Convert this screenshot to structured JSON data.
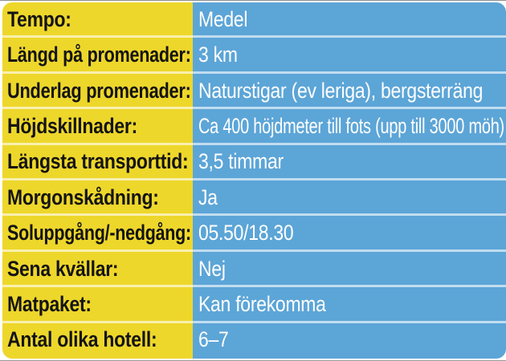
{
  "table": {
    "rows": [
      {
        "label": "Tempo:",
        "value": "Medel"
      },
      {
        "label": "Längd på promenader:",
        "value": "3 km"
      },
      {
        "label": "Underlag promenader:",
        "value": "Naturstigar (ev leriga), bergsterräng"
      },
      {
        "label": "Höjdskillnader:",
        "value": "Ca 400 höjdmeter till fots (upp till 3000 möh)"
      },
      {
        "label": "Längsta transporttid:",
        "value": "3,5 timmar"
      },
      {
        "label": "Morgonskådning:",
        "value": "Ja"
      },
      {
        "label": "Soluppgång/-nedgång:",
        "value": "05.50/18.30"
      },
      {
        "label": "Sena kvällar:",
        "value": "Nej"
      },
      {
        "label": "Matpaket:",
        "value": "Kan förekomma"
      },
      {
        "label": "Antal olika hotell:",
        "value": "6–7"
      }
    ]
  },
  "colors": {
    "label_bg": "#eed72b",
    "value_bg": "#5ca5d7",
    "label_text": "#141414",
    "value_text": "#ffffff"
  }
}
